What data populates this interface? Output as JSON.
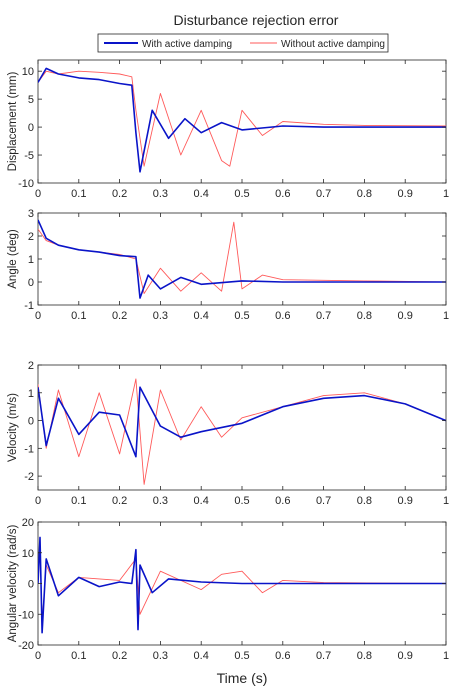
{
  "colors": {
    "with_damping": "#0a14c8",
    "without_damping": "#ff5a5a",
    "axis": "#262626",
    "background": "#ffffff"
  },
  "figure": {
    "title": "Disturbance rejection error",
    "xlabel": "Time (s)",
    "legend": {
      "placement": "top-center",
      "entries": [
        "With active damping",
        "Without active damping"
      ]
    }
  },
  "chart_data": [
    {
      "type": "line",
      "ylabel": "Displacement (mm)",
      "xlim": [
        0,
        1
      ],
      "ylim": [
        -10,
        12
      ],
      "xticks": [
        0,
        0.1,
        0.2,
        0.3,
        0.4,
        0.5,
        0.6,
        0.7,
        0.8,
        0.9,
        1
      ],
      "yticks": [
        -10,
        -5,
        0,
        5,
        10
      ],
      "series": [
        {
          "name": "With active damping",
          "x": [
            0,
            0.02,
            0.05,
            0.1,
            0.15,
            0.2,
            0.23,
            0.24,
            0.25,
            0.28,
            0.32,
            0.36,
            0.4,
            0.45,
            0.5,
            0.6,
            0.7,
            0.8,
            1.0
          ],
          "y": [
            8,
            10.5,
            9.5,
            8.8,
            8.5,
            7.8,
            7.5,
            -1,
            -8,
            3,
            -2,
            1.5,
            -1,
            0.8,
            -0.5,
            0.2,
            0,
            0,
            0
          ]
        },
        {
          "name": "Without active damping",
          "x": [
            0,
            0.02,
            0.05,
            0.1,
            0.15,
            0.2,
            0.23,
            0.24,
            0.26,
            0.3,
            0.35,
            0.4,
            0.45,
            0.47,
            0.5,
            0.55,
            0.6,
            0.7,
            0.8,
            1.0
          ],
          "y": [
            8,
            10,
            9.5,
            10,
            9.8,
            9.5,
            9,
            3,
            -7,
            6,
            -5,
            3,
            -6,
            -7,
            3,
            -1.5,
            1,
            0.5,
            0.3,
            0.2
          ]
        }
      ]
    },
    {
      "type": "line",
      "ylabel": "Angle (deg)",
      "xlim": [
        0,
        1
      ],
      "ylim": [
        -1,
        3
      ],
      "xticks": [
        0,
        0.1,
        0.2,
        0.3,
        0.4,
        0.5,
        0.6,
        0.7,
        0.8,
        0.9,
        1
      ],
      "yticks": [
        -1,
        0,
        1,
        2,
        3
      ],
      "series": [
        {
          "name": "With active damping",
          "x": [
            0,
            0.02,
            0.05,
            0.1,
            0.15,
            0.2,
            0.24,
            0.25,
            0.27,
            0.3,
            0.35,
            0.4,
            0.5,
            0.6,
            0.8,
            1.0
          ],
          "y": [
            2.7,
            1.9,
            1.6,
            1.4,
            1.3,
            1.15,
            1.1,
            -0.7,
            0.3,
            -0.3,
            0.2,
            -0.1,
            0.05,
            0,
            0,
            0
          ]
        },
        {
          "name": "Without active damping",
          "x": [
            0,
            0.02,
            0.05,
            0.1,
            0.15,
            0.2,
            0.24,
            0.26,
            0.3,
            0.35,
            0.4,
            0.45,
            0.48,
            0.5,
            0.55,
            0.6,
            0.8,
            1.0
          ],
          "y": [
            2.3,
            1.8,
            1.6,
            1.4,
            1.3,
            1.2,
            1.0,
            -0.5,
            0.6,
            -0.4,
            0.4,
            -0.4,
            2.6,
            -0.3,
            0.3,
            0.1,
            0.05,
            0
          ]
        }
      ]
    },
    {
      "type": "line",
      "ylabel": "Velocity (m/s)",
      "xlim": [
        0,
        1
      ],
      "ylim": [
        -2.5,
        2
      ],
      "xticks": [
        0,
        0.1,
        0.2,
        0.3,
        0.4,
        0.5,
        0.6,
        0.7,
        0.8,
        0.9,
        1
      ],
      "yticks": [
        -2,
        -1,
        0,
        1,
        2
      ],
      "series": [
        {
          "name": "With active damping",
          "x": [
            0,
            0.02,
            0.05,
            0.1,
            0.15,
            0.2,
            0.24,
            0.25,
            0.3,
            0.35,
            0.4,
            0.5,
            0.6,
            0.7,
            0.8,
            0.9,
            1.0
          ],
          "y": [
            1.2,
            -0.9,
            0.8,
            -0.5,
            0.3,
            0.2,
            -1.3,
            1.2,
            -0.2,
            -0.6,
            -0.4,
            -0.1,
            0.5,
            0.8,
            0.9,
            0.6,
            0
          ]
        },
        {
          "name": "Without active damping",
          "x": [
            0,
            0.02,
            0.05,
            0.1,
            0.15,
            0.2,
            0.24,
            0.26,
            0.3,
            0.35,
            0.4,
            0.45,
            0.5,
            0.6,
            0.7,
            0.8,
            0.9,
            1.0
          ],
          "y": [
            1.3,
            -1.0,
            1.1,
            -1.3,
            1.0,
            -1.2,
            1.5,
            -2.3,
            1.1,
            -0.7,
            0.5,
            -0.6,
            0.1,
            0.5,
            0.9,
            1.0,
            0.6,
            0
          ]
        }
      ]
    },
    {
      "type": "line",
      "ylabel": "Angular velocity (rad/s)",
      "xlim": [
        0,
        1
      ],
      "ylim": [
        -20,
        20
      ],
      "xticks": [
        0,
        0.1,
        0.2,
        0.3,
        0.4,
        0.5,
        0.6,
        0.7,
        0.8,
        0.9,
        1
      ],
      "yticks": [
        -20,
        -10,
        0,
        10,
        20
      ],
      "series": [
        {
          "name": "With active damping",
          "x": [
            0,
            0.005,
            0.01,
            0.02,
            0.05,
            0.1,
            0.15,
            0.2,
            0.23,
            0.24,
            0.245,
            0.25,
            0.28,
            0.32,
            0.4,
            0.5,
            1.0
          ],
          "y": [
            0,
            15,
            -16,
            8,
            -4,
            2,
            -1,
            0.5,
            0,
            11,
            -15,
            6,
            -3,
            1.5,
            0.5,
            0,
            0
          ]
        },
        {
          "name": "Without active damping",
          "x": [
            0,
            0.005,
            0.01,
            0.02,
            0.05,
            0.1,
            0.2,
            0.24,
            0.25,
            0.3,
            0.4,
            0.45,
            0.5,
            0.55,
            0.6,
            0.7,
            1.0
          ],
          "y": [
            0,
            12,
            -13,
            6,
            -3,
            2,
            1,
            8,
            -10,
            4,
            -2,
            3,
            4,
            -3,
            1,
            0.3,
            0
          ]
        }
      ]
    }
  ]
}
